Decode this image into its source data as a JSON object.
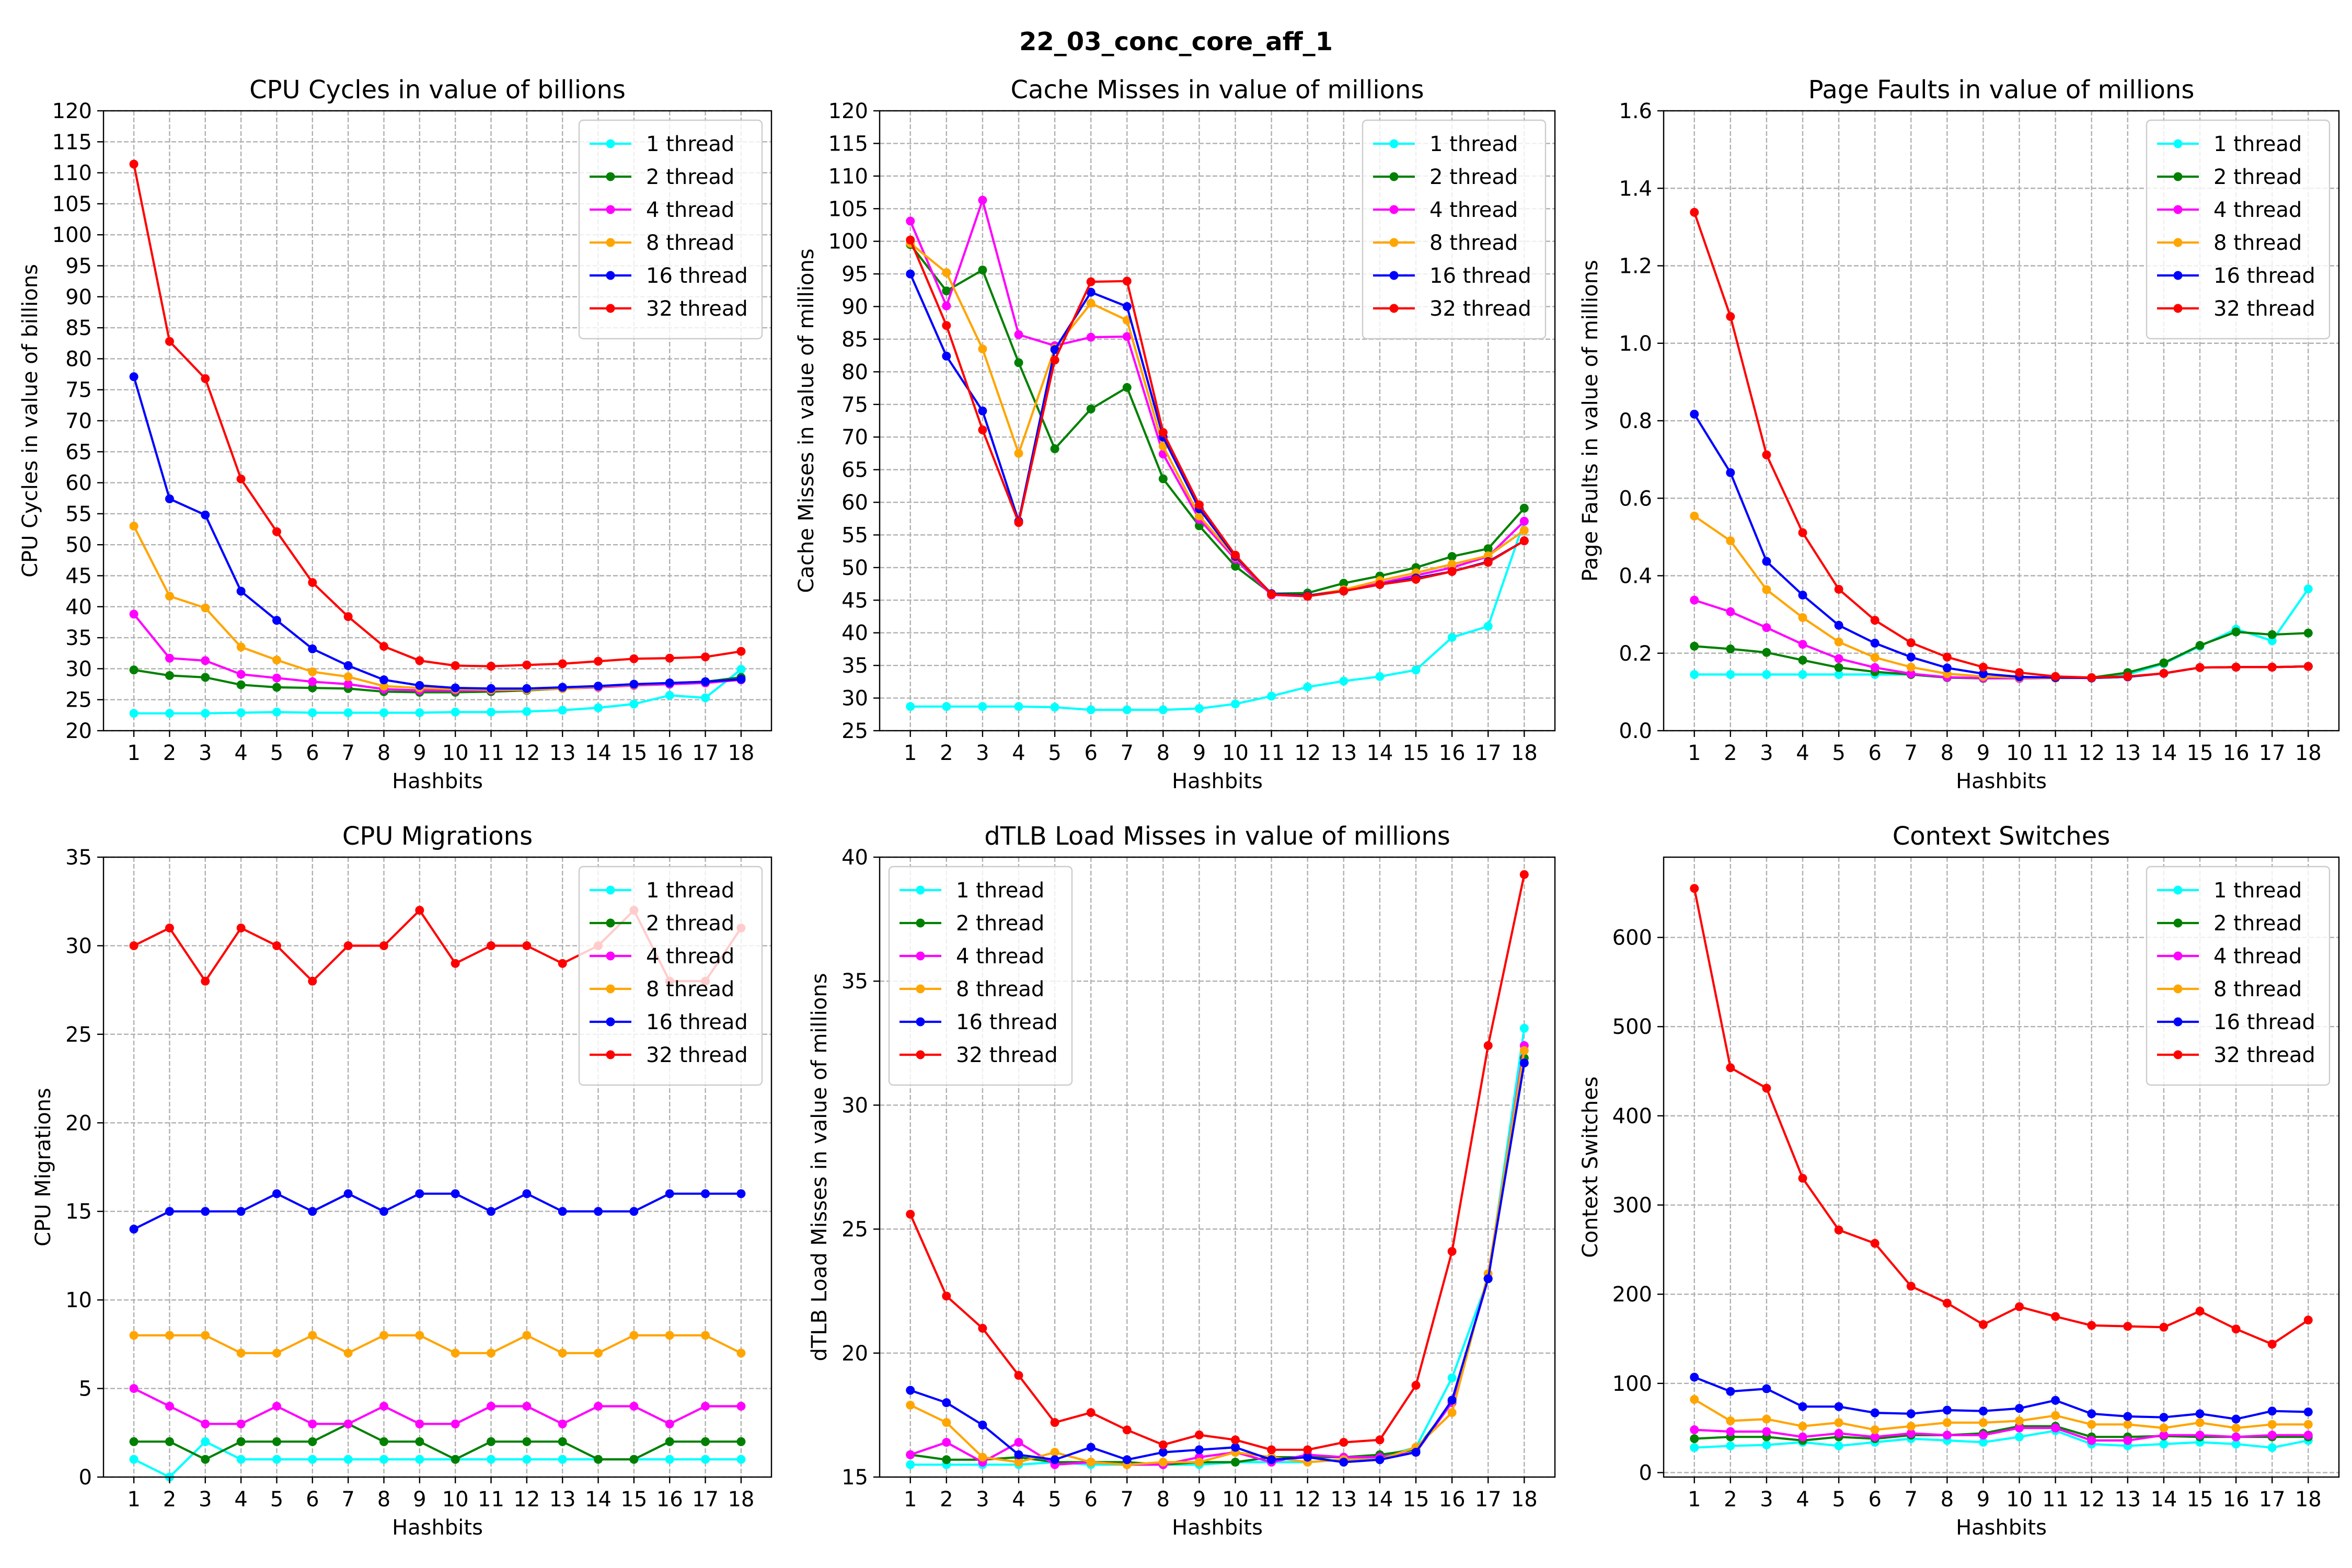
{
  "figure": {
    "suptitle": "22_03_conc_core_aff_1"
  },
  "series_style": [
    {
      "name": "1 thread",
      "color": "#00FFFF"
    },
    {
      "name": "2 thread",
      "color": "#008000"
    },
    {
      "name": "4 thread",
      "color": "#FF00FF"
    },
    {
      "name": "8 thread",
      "color": "#FFA500"
    },
    {
      "name": "16 thread",
      "color": "#0000FF"
    },
    {
      "name": "32 thread",
      "color": "#FF0000"
    }
  ],
  "chart_data": [
    {
      "type": "line",
      "title": "CPU Cycles in value of billions",
      "xlabel": "Hashbits",
      "ylabel": "CPU Cycles in value of billions",
      "x": [
        1,
        2,
        3,
        4,
        5,
        6,
        7,
        8,
        9,
        10,
        11,
        12,
        13,
        14,
        15,
        16,
        17,
        18
      ],
      "ylim": [
        20,
        120
      ],
      "yticks": [
        20,
        25,
        30,
        35,
        40,
        45,
        50,
        55,
        60,
        65,
        70,
        75,
        80,
        85,
        90,
        95,
        100,
        105,
        110,
        115,
        120
      ],
      "grid": true,
      "legend_position": "top-right",
      "series": [
        {
          "name": "1 thread",
          "values": [
            22.8,
            22.8,
            22.8,
            22.9,
            23.0,
            22.9,
            22.9,
            22.9,
            22.9,
            23.0,
            23.0,
            23.1,
            23.3,
            23.7,
            24.3,
            25.7,
            25.3,
            29.9
          ]
        },
        {
          "name": "2 thread",
          "values": [
            29.8,
            28.9,
            28.6,
            27.4,
            27.0,
            26.9,
            26.8,
            26.3,
            26.2,
            26.2,
            26.3,
            26.5,
            26.8,
            27.1,
            27.4,
            27.6,
            27.9,
            28.6
          ]
        },
        {
          "name": "4 thread",
          "values": [
            38.8,
            31.7,
            31.3,
            29.1,
            28.5,
            27.9,
            27.5,
            26.7,
            26.5,
            26.5,
            26.5,
            26.6,
            26.8,
            27.0,
            27.3,
            27.5,
            27.7,
            28.2
          ]
        },
        {
          "name": "8 thread",
          "values": [
            53.0,
            41.7,
            39.8,
            33.5,
            31.4,
            29.5,
            28.7,
            27.2,
            26.9,
            26.7,
            26.6,
            26.6,
            26.8,
            27.1,
            27.4,
            27.7,
            27.9,
            28.3
          ]
        },
        {
          "name": "16 thread",
          "values": [
            77.1,
            57.4,
            54.8,
            42.5,
            37.8,
            33.2,
            30.5,
            28.2,
            27.3,
            26.9,
            26.8,
            26.8,
            27.0,
            27.2,
            27.5,
            27.7,
            27.9,
            28.3
          ]
        },
        {
          "name": "32 thread",
          "values": [
            111.4,
            82.8,
            76.8,
            60.6,
            52.1,
            43.9,
            38.4,
            33.6,
            31.3,
            30.5,
            30.4,
            30.6,
            30.8,
            31.2,
            31.6,
            31.7,
            31.9,
            32.8
          ]
        }
      ]
    },
    {
      "type": "line",
      "title": "Cache Misses in value of millions",
      "xlabel": "Hashbits",
      "ylabel": "Cache Misses in value of millions",
      "x": [
        1,
        2,
        3,
        4,
        5,
        6,
        7,
        8,
        9,
        10,
        11,
        12,
        13,
        14,
        15,
        16,
        17,
        18
      ],
      "ylim": [
        25,
        120
      ],
      "yticks": [
        25,
        30,
        35,
        40,
        45,
        50,
        55,
        60,
        65,
        70,
        75,
        80,
        85,
        90,
        95,
        100,
        105,
        110,
        115,
        120
      ],
      "grid": true,
      "legend_position": "top-right",
      "series": [
        {
          "name": "1 thread",
          "values": [
            28.7,
            28.7,
            28.7,
            28.7,
            28.6,
            28.2,
            28.2,
            28.2,
            28.4,
            29.1,
            30.3,
            31.7,
            32.6,
            33.3,
            34.3,
            39.3,
            41.0,
            57.1
          ]
        },
        {
          "name": "2 thread",
          "values": [
            99.5,
            92.4,
            95.6,
            81.4,
            68.2,
            74.3,
            77.6,
            63.6,
            56.4,
            50.2,
            46.0,
            46.1,
            47.6,
            48.7,
            50.0,
            51.7,
            52.9,
            59.1
          ]
        },
        {
          "name": "4 thread",
          "values": [
            103.1,
            90.1,
            106.3,
            85.7,
            84.0,
            85.3,
            85.4,
            67.4,
            57.4,
            51.3,
            45.8,
            45.6,
            46.4,
            47.6,
            48.8,
            50.0,
            51.7,
            57.1
          ]
        },
        {
          "name": "8 thread",
          "values": [
            99.7,
            95.2,
            83.5,
            67.5,
            83.6,
            90.5,
            87.9,
            68.6,
            57.9,
            51.6,
            46.0,
            45.7,
            46.6,
            48.0,
            49.2,
            50.5,
            51.8,
            55.7
          ]
        },
        {
          "name": "16 thread",
          "values": [
            95.0,
            82.4,
            74.0,
            57.1,
            83.4,
            92.2,
            90.0,
            70.0,
            59.0,
            51.7,
            46.0,
            45.7,
            46.4,
            47.4,
            48.4,
            49.4,
            50.9,
            54.1
          ]
        },
        {
          "name": "32 thread",
          "values": [
            100.2,
            87.1,
            71.1,
            56.9,
            81.8,
            93.8,
            93.9,
            70.7,
            59.6,
            51.9,
            45.9,
            45.6,
            46.4,
            47.4,
            48.2,
            49.4,
            50.8,
            54.1
          ]
        }
      ]
    },
    {
      "type": "line",
      "title": "Page Faults in value of millions",
      "xlabel": "Hashbits",
      "ylabel": "Page Faults in value of millions",
      "x": [
        1,
        2,
        3,
        4,
        5,
        6,
        7,
        8,
        9,
        10,
        11,
        12,
        13,
        14,
        15,
        16,
        17,
        18
      ],
      "ylim": [
        0.0,
        1.6
      ],
      "yticks": [
        0.0,
        0.2,
        0.4,
        0.6,
        0.8,
        1.0,
        1.2,
        1.4,
        1.6
      ],
      "ytick_decimals": 1,
      "grid": true,
      "legend_position": "top-right",
      "series": [
        {
          "name": "1 thread",
          "values": [
            0.145,
            0.145,
            0.145,
            0.145,
            0.145,
            0.145,
            0.145,
            0.137,
            0.135,
            0.135,
            0.136,
            0.137,
            0.145,
            0.173,
            0.218,
            0.262,
            0.232,
            0.366
          ]
        },
        {
          "name": "2 thread",
          "values": [
            0.218,
            0.211,
            0.202,
            0.182,
            0.163,
            0.152,
            0.145,
            0.137,
            0.135,
            0.135,
            0.136,
            0.137,
            0.15,
            0.175,
            0.22,
            0.255,
            0.248,
            0.252
          ]
        },
        {
          "name": "4 thread",
          "values": [
            0.337,
            0.307,
            0.266,
            0.223,
            0.186,
            0.163,
            0.147,
            0.138,
            0.136,
            0.135,
            0.136,
            0.136,
            0.139,
            0.148,
            0.163,
            0.164,
            0.164,
            0.166
          ]
        },
        {
          "name": "8 thread",
          "values": [
            0.554,
            0.49,
            0.364,
            0.292,
            0.229,
            0.189,
            0.164,
            0.147,
            0.14,
            0.137,
            0.136,
            0.136,
            0.139,
            0.148,
            0.163,
            0.164,
            0.164,
            0.166
          ]
        },
        {
          "name": "16 thread",
          "values": [
            0.817,
            0.666,
            0.437,
            0.35,
            0.272,
            0.226,
            0.19,
            0.162,
            0.147,
            0.139,
            0.137,
            0.136,
            0.139,
            0.148,
            0.163,
            0.164,
            0.164,
            0.166
          ]
        },
        {
          "name": "32 thread",
          "values": [
            1.338,
            1.069,
            0.712,
            0.511,
            0.365,
            0.285,
            0.227,
            0.19,
            0.164,
            0.15,
            0.14,
            0.137,
            0.14,
            0.148,
            0.163,
            0.164,
            0.164,
            0.166
          ]
        }
      ]
    },
    {
      "type": "line",
      "title": "CPU Migrations",
      "xlabel": "Hashbits",
      "ylabel": "CPU Migrations",
      "x": [
        1,
        2,
        3,
        4,
        5,
        6,
        7,
        8,
        9,
        10,
        11,
        12,
        13,
        14,
        15,
        16,
        17,
        18
      ],
      "ylim": [
        0,
        35
      ],
      "yticks": [
        0,
        5,
        10,
        15,
        20,
        25,
        30,
        35
      ],
      "grid": true,
      "legend_position": "top-right",
      "series": [
        {
          "name": "1 thread",
          "values": [
            1,
            0,
            2,
            1,
            1,
            1,
            1,
            1,
            1,
            1,
            1,
            1,
            1,
            1,
            1,
            1,
            1,
            1
          ]
        },
        {
          "name": "2 thread",
          "values": [
            2,
            2,
            1,
            2,
            2,
            2,
            3,
            2,
            2,
            1,
            2,
            2,
            2,
            1,
            1,
            2,
            2,
            2
          ]
        },
        {
          "name": "4 thread",
          "values": [
            5,
            4,
            3,
            3,
            4,
            3,
            3,
            4,
            3,
            3,
            4,
            4,
            3,
            4,
            4,
            3,
            4,
            4
          ]
        },
        {
          "name": "8 thread",
          "values": [
            8,
            8,
            8,
            7,
            7,
            8,
            7,
            8,
            8,
            7,
            7,
            8,
            7,
            7,
            8,
            8,
            8,
            7
          ]
        },
        {
          "name": "16 thread",
          "values": [
            14,
            15,
            15,
            15,
            16,
            15,
            16,
            15,
            16,
            16,
            15,
            16,
            15,
            15,
            15,
            16,
            16,
            16
          ]
        },
        {
          "name": "32 thread",
          "values": [
            30,
            31,
            28,
            31,
            30,
            28,
            30,
            30,
            32,
            29,
            30,
            30,
            29,
            30,
            32,
            28,
            28,
            31
          ]
        }
      ]
    },
    {
      "type": "line",
      "title": "dTLB Load Misses in value of millions",
      "xlabel": "Hashbits",
      "ylabel": "dTLB Load Misses in value of millions",
      "x": [
        1,
        2,
        3,
        4,
        5,
        6,
        7,
        8,
        9,
        10,
        11,
        12,
        13,
        14,
        15,
        16,
        17,
        18
      ],
      "ylim": [
        15,
        40
      ],
      "yticks": [
        15,
        20,
        25,
        30,
        35,
        40
      ],
      "grid": true,
      "legend_position": "top-left",
      "series": [
        {
          "name": "1 thread",
          "values": [
            15.5,
            15.5,
            15.5,
            15.5,
            15.6,
            15.5,
            15.5,
            15.5,
            15.5,
            15.6,
            15.6,
            15.6,
            15.7,
            15.8,
            16.2,
            19.0,
            23.0,
            33.1
          ]
        },
        {
          "name": "2 thread",
          "values": [
            15.9,
            15.7,
            15.7,
            15.8,
            15.6,
            15.6,
            15.6,
            15.5,
            15.6,
            15.6,
            15.8,
            15.8,
            15.8,
            15.9,
            16.1,
            18.0,
            23.0,
            31.9
          ]
        },
        {
          "name": "4 thread",
          "values": [
            15.9,
            16.4,
            15.6,
            16.4,
            15.5,
            15.6,
            15.5,
            15.5,
            15.8,
            16.0,
            15.6,
            15.9,
            15.8,
            15.8,
            16.0,
            18.0,
            23.0,
            32.4
          ]
        },
        {
          "name": "8 thread",
          "values": [
            17.9,
            17.2,
            15.8,
            15.6,
            16.0,
            15.6,
            15.5,
            15.6,
            15.6,
            16.0,
            15.8,
            15.6,
            15.7,
            15.7,
            16.2,
            17.6,
            23.2,
            32.2
          ]
        },
        {
          "name": "16 thread",
          "values": [
            18.5,
            18.0,
            17.1,
            15.9,
            15.7,
            16.2,
            15.7,
            16.0,
            16.1,
            16.2,
            15.7,
            15.8,
            15.6,
            15.7,
            16.0,
            18.1,
            23.0,
            31.7
          ]
        },
        {
          "name": "32 thread",
          "values": [
            25.6,
            22.3,
            21.0,
            19.1,
            17.2,
            17.6,
            16.9,
            16.3,
            16.7,
            16.5,
            16.1,
            16.1,
            16.4,
            16.5,
            18.7,
            24.1,
            32.4,
            39.3
          ]
        }
      ]
    },
    {
      "type": "line",
      "title": "Context Switches",
      "xlabel": "Hashbits",
      "ylabel": "Context Switches",
      "x": [
        1,
        2,
        3,
        4,
        5,
        6,
        7,
        8,
        9,
        10,
        11,
        12,
        13,
        14,
        15,
        16,
        17,
        18
      ],
      "ylim": [
        -5,
        690
      ],
      "yticks": [
        0,
        100,
        200,
        300,
        400,
        500,
        600
      ],
      "grid": true,
      "legend_position": "top-right",
      "series": [
        {
          "name": "1 thread",
          "values": [
            28,
            30,
            31,
            34,
            30,
            34,
            38,
            36,
            34,
            40,
            47,
            32,
            30,
            32,
            34,
            32,
            28,
            36
          ]
        },
        {
          "name": "2 thread",
          "values": [
            38,
            40,
            40,
            36,
            40,
            38,
            42,
            42,
            44,
            52,
            52,
            40,
            40,
            41,
            40,
            40,
            40,
            40
          ]
        },
        {
          "name": "4 thread",
          "values": [
            48,
            46,
            46,
            40,
            44,
            40,
            44,
            42,
            42,
            50,
            50,
            36,
            36,
            42,
            42,
            40,
            42,
            42
          ]
        },
        {
          "name": "8 thread",
          "values": [
            82,
            58,
            60,
            52,
            56,
            48,
            52,
            56,
            56,
            58,
            64,
            54,
            54,
            50,
            56,
            50,
            54,
            54
          ]
        },
        {
          "name": "16 thread",
          "values": [
            107,
            91,
            94,
            74,
            74,
            67,
            66,
            70,
            69,
            72,
            81,
            66,
            63,
            62,
            66,
            60,
            69,
            68
          ]
        },
        {
          "name": "32 thread",
          "values": [
            655,
            454,
            431,
            330,
            272,
            257,
            209,
            190,
            166,
            186,
            175,
            165,
            164,
            163,
            181,
            161,
            144,
            171
          ]
        }
      ]
    }
  ]
}
